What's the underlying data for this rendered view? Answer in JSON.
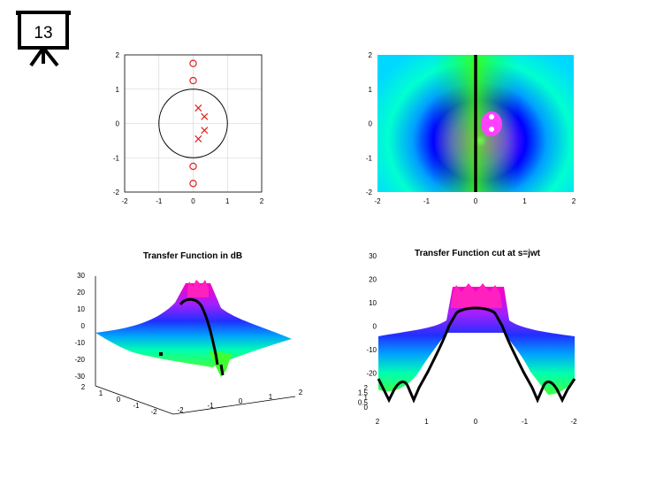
{
  "slide": {
    "number": "13",
    "icon": "presentation-board-icon"
  },
  "colors": {
    "marker": "#e02020",
    "circle": "#000000",
    "locus": "#000000",
    "grid": "#d0d0d0"
  },
  "chart_data": [
    {
      "id": "pole-zero",
      "type": "scatter",
      "title": "",
      "xlim": [
        -2,
        2
      ],
      "ylim": [
        -2,
        2
      ],
      "xticks": [
        "-2",
        "-1",
        "0",
        "1",
        "2"
      ],
      "yticks": [
        "2",
        "1",
        "0",
        "-1",
        "-2"
      ],
      "grid": true,
      "unit_circle": true,
      "zeros": [
        [
          0,
          1.75
        ],
        [
          0,
          1.25
        ],
        [
          0,
          -1.25
        ],
        [
          0,
          -1.75
        ]
      ],
      "poles": [
        [
          0.15,
          0.45
        ],
        [
          0.33,
          0.2
        ],
        [
          0.33,
          -0.2
        ],
        [
          0.15,
          -0.45
        ]
      ]
    },
    {
      "id": "s-plane-map",
      "type": "heatmap",
      "title": "",
      "xlim": [
        -2,
        2
      ],
      "ylim": [
        -2,
        2
      ],
      "xticks": [
        "-2",
        "-1",
        "0",
        "1",
        "2"
      ],
      "yticks": [
        "2",
        "1",
        "0",
        "-1",
        "-2"
      ],
      "colormap": "hsv",
      "jw_axis_line": true
    },
    {
      "id": "surface-3d",
      "type": "surface",
      "title": "Transfer Function in dB",
      "zticks": [
        "30",
        "20",
        "10",
        "0",
        "-10",
        "-20",
        "-30"
      ],
      "xticks": [
        "-2",
        "-1",
        "0",
        "1",
        "2"
      ],
      "yticks": [
        "2",
        "1",
        "0",
        "-1",
        "-2"
      ]
    },
    {
      "id": "surface-cut",
      "type": "surface",
      "title": "Transfer Function cut at s=jwt",
      "zticks": [
        "30",
        "20",
        "10",
        "0",
        "-10",
        "-20"
      ],
      "small_ticks": [
        "2",
        "1.5",
        "1",
        "0.5",
        "0"
      ],
      "xticks": [
        "2",
        "1",
        "0",
        "-1",
        "-2"
      ]
    }
  ]
}
